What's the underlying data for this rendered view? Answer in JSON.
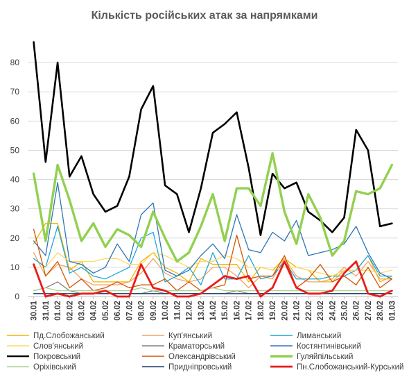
{
  "chart_data": {
    "type": "line",
    "title": "Кількість російських атак за напрямками",
    "xlabel": "",
    "ylabel": "",
    "ylim": [
      0,
      90
    ],
    "yticks": [
      0,
      10,
      20,
      30,
      40,
      50,
      60,
      70,
      80
    ],
    "grid": true,
    "legend_position": "bottom",
    "x": [
      "30.01",
      "31.01",
      "01.02",
      "02.02",
      "03.02",
      "04.02",
      "05.02",
      "06.02",
      "07.02",
      "08.02",
      "09.02",
      "10.02",
      "11.02",
      "12.02",
      "13.02",
      "14.02",
      "15.02",
      "16.02",
      "17.02",
      "18.02",
      "19.02",
      "20.02",
      "21.02",
      "22.02",
      "23.02",
      "24.02",
      "25.02",
      "26.02",
      "27.02",
      "28.02",
      "01.03"
    ],
    "x_tick_labels": [
      "30.01",
      "31.01",
      "01.02",
      "02.02",
      "03.02",
      "04.02",
      "05.02",
      "06.02",
      "07.02",
      "08.02",
      "09.02",
      "10.02",
      "11.02",
      "12.02",
      "13.02",
      "14.02",
      "15.02",
      "16.02",
      "17.02",
      "18.02",
      "19.02",
      "20.02",
      "21.02",
      "22.02",
      "23.02",
      "24.02",
      "25.02",
      "26.02",
      "27.02",
      "28.02",
      "01.03"
    ],
    "series": [
      {
        "name": "Пд.Слобожанський",
        "color": "#F5B400",
        "width": 1.3,
        "values": [
          18,
          25,
          25,
          9,
          12,
          5,
          5,
          5,
          5,
          12,
          15,
          10,
          8,
          5,
          13,
          11,
          11,
          11,
          5,
          10,
          9,
          13,
          10,
          9,
          5,
          5,
          9,
          9,
          14,
          5,
          7
        ]
      },
      {
        "name": "Куп'янський",
        "color": "#F4A261",
        "width": 1.3,
        "values": [
          15,
          7,
          11,
          10,
          6,
          4,
          4,
          4,
          5,
          8,
          13,
          8,
          6,
          5,
          6,
          10,
          10,
          7,
          3,
          7,
          6,
          13,
          7,
          5,
          5,
          6,
          10,
          7,
          12,
          6,
          6
        ]
      },
      {
        "name": "Лиманський",
        "color": "#1FA7D8",
        "width": 1.3,
        "values": [
          13,
          10,
          24,
          8,
          10,
          7,
          6,
          8,
          10,
          20,
          22,
          5,
          7,
          10,
          4,
          15,
          6,
          6,
          14,
          6,
          7,
          12,
          6,
          6,
          6,
          7,
          7,
          9,
          14,
          7,
          7
        ]
      },
      {
        "name": "Слов'янський",
        "color": "#FFD966",
        "width": 1.3,
        "values": [
          10,
          10,
          15,
          12,
          12,
          12,
          13,
          13,
          11,
          11,
          15,
          14,
          12,
          10,
          12,
          12,
          14,
          13,
          10,
          10,
          9,
          10,
          10,
          9,
          8,
          7,
          9,
          9,
          9,
          8,
          9
        ]
      },
      {
        "name": "Краматорський",
        "color": "#808080",
        "width": 1.3,
        "values": [
          2,
          3,
          5,
          2,
          1,
          1,
          1,
          1,
          1,
          1,
          2,
          1,
          1,
          1,
          1,
          1,
          1,
          2,
          1,
          1,
          1,
          1,
          1,
          1,
          1,
          1,
          1,
          1,
          1,
          1,
          1
        ]
      },
      {
        "name": "Костянтинівський",
        "color": "#2E75B6",
        "width": 1.3,
        "values": [
          19,
          14,
          39,
          12,
          11,
          8,
          10,
          18,
          12,
          28,
          32,
          9,
          7,
          9,
          14,
          18,
          13,
          28,
          16,
          15,
          22,
          19,
          26,
          14,
          15,
          16,
          18,
          24,
          15,
          8,
          6
        ]
      },
      {
        "name": "Покровський",
        "color": "#000000",
        "width": 2.6,
        "values": [
          87,
          46,
          80,
          41,
          48,
          35,
          29,
          31,
          41,
          64,
          72,
          38,
          35,
          22,
          37,
          56,
          59,
          63,
          44,
          21,
          42,
          37,
          39,
          29,
          26,
          22,
          27,
          57,
          50,
          24,
          25
        ]
      },
      {
        "name": "Олександрівський",
        "color": "#D35400",
        "width": 1.3,
        "values": [
          23,
          7,
          12,
          3,
          6,
          2,
          3,
          5,
          3,
          4,
          4,
          6,
          2,
          5,
          2,
          3,
          4,
          21,
          6,
          7,
          7,
          14,
          3,
          6,
          11,
          5,
          7,
          4,
          10,
          3,
          6
        ]
      },
      {
        "name": "Гуляйпільський",
        "color": "#92D050",
        "width": 3.4,
        "values": [
          42,
          19,
          45,
          33,
          19,
          25,
          17,
          23,
          21,
          17,
          29,
          20,
          12,
          15,
          24,
          35,
          19,
          37,
          37,
          31,
          49,
          29,
          18,
          35,
          27,
          14,
          19,
          36,
          35,
          37,
          45
        ]
      },
      {
        "name": "Оріхівський",
        "color": "#A9D18E",
        "width": 1.3,
        "values": [
          2,
          3,
          2,
          2,
          2,
          2,
          2,
          2,
          2,
          3,
          2,
          2,
          2,
          2,
          2,
          3,
          2,
          2,
          2,
          2,
          2,
          2,
          2,
          2,
          2,
          2,
          2,
          2,
          2,
          2,
          2
        ]
      },
      {
        "name": "Придніпровський",
        "color": "#1F3864",
        "width": 1.3,
        "values": [
          1,
          1,
          1,
          1,
          1,
          1,
          1,
          1,
          1,
          1,
          1,
          1,
          1,
          1,
          1,
          1,
          1,
          1,
          1,
          1,
          1,
          1,
          1,
          1,
          1,
          1,
          1,
          1,
          1,
          1,
          1
        ]
      },
      {
        "name": "Пн.Слобожанський-Курський",
        "color": "#E81C1C",
        "width": 2.8,
        "values": [
          11,
          0,
          1,
          0,
          1,
          1,
          2,
          0,
          0,
          11,
          3,
          2,
          0,
          0,
          1,
          4,
          7,
          6,
          7,
          0,
          3,
          12,
          3,
          1,
          1,
          2,
          8,
          12,
          1,
          0,
          2
        ]
      }
    ]
  },
  "legend_rows": [
    [
      {
        "name": "Пд.Слобожанський",
        "color": "#F5B400"
      },
      {
        "name": "Куп'янський",
        "color": "#F4A261"
      },
      {
        "name": "Лиманський",
        "color": "#1FA7D8"
      }
    ],
    [
      {
        "name": "Слов'янський",
        "color": "#FFD966"
      },
      {
        "name": "Краматорський",
        "color": "#808080"
      },
      {
        "name": "Костянтинівський",
        "color": "#2E75B6"
      }
    ],
    [
      {
        "name": "Покровський",
        "color": "#000000"
      },
      {
        "name": "Олександрівський",
        "color": "#D35400"
      },
      {
        "name": "Гуляйпільський",
        "color": "#92D050"
      }
    ],
    [
      {
        "name": "Оріхівський",
        "color": "#A9D18E"
      },
      {
        "name": "Придніпровський",
        "color": "#1F3864"
      },
      {
        "name": "Пн.Слобожанський-Курський",
        "color": "#E81C1C"
      }
    ]
  ]
}
